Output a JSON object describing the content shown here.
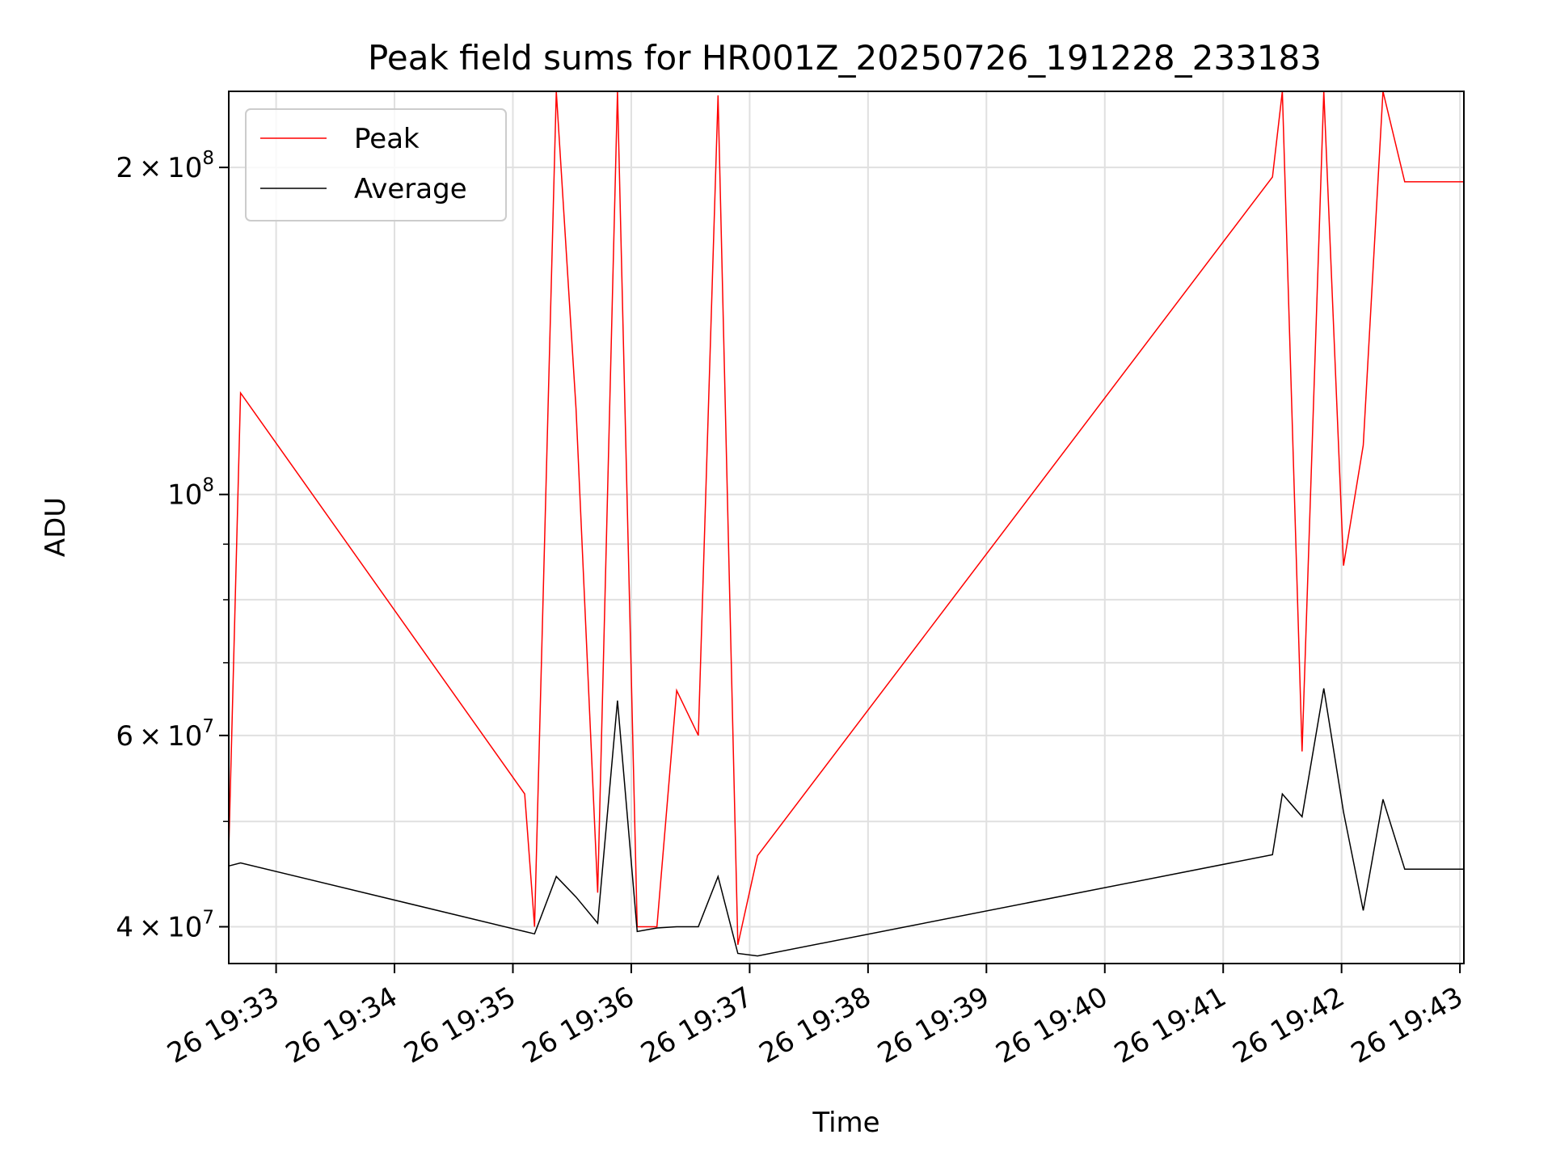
{
  "chart_data": {
    "type": "line",
    "title": "Peak field sums for HR001Z_20250726_191228_233183",
    "xlabel": "Time",
    "ylabel": "ADU",
    "yscale": "log",
    "ylim": [
      37000000,
      235000000
    ],
    "xlim": [
      "19:32:36",
      "19:43:02"
    ],
    "grid": true,
    "legend": {
      "position": "top-left",
      "entries": [
        "Peak",
        "Average"
      ]
    },
    "x_ticks": [
      "26 19:33",
      "26 19:34",
      "26 19:35",
      "26 19:36",
      "26 19:37",
      "26 19:38",
      "26 19:39",
      "26 19:40",
      "26 19:41",
      "26 19:42",
      "26 19:43"
    ],
    "y_ticks": [
      {
        "value": 40000000,
        "mantissa": "4",
        "op": "×",
        "base": "10",
        "exp": "7"
      },
      {
        "value": 60000000,
        "mantissa": "6",
        "op": "×",
        "base": "10",
        "exp": "7"
      },
      {
        "value": 100000000,
        "mantissa": "",
        "op": "",
        "base": "10",
        "exp": "8"
      },
      {
        "value": 200000000,
        "mantissa": "2",
        "op": "×",
        "base": "10",
        "exp": "8"
      }
    ],
    "minor_y": [
      50000000,
      70000000,
      80000000,
      90000000
    ],
    "colors": {
      "Peak": "#ff0000",
      "Average": "#000000"
    },
    "series": [
      {
        "name": "Peak",
        "x": [
          "19:32:36",
          "19:32:42",
          "19:35:06",
          "19:35:11",
          "19:35:22",
          "19:35:32",
          "19:35:43",
          "19:35:53",
          "19:36:03",
          "19:36:13",
          "19:36:23",
          "19:36:34",
          "19:36:44",
          "19:36:54",
          "19:37:04",
          "19:41:25",
          "19:41:30",
          "19:41:40",
          "19:41:51",
          "19:42:01",
          "19:42:11",
          "19:42:21",
          "19:42:32",
          "19:43:02"
        ],
        "values": [
          47000000,
          124000000,
          53000000,
          40000000,
          235000000,
          120000000,
          43000000,
          235000000,
          40000000,
          40000000,
          66000000,
          60000000,
          233000000,
          38500000,
          46500000,
          196000000,
          235000000,
          58000000,
          235000000,
          86000000,
          111000000,
          235000000,
          194000000,
          194000000
        ]
      },
      {
        "name": "Average",
        "x": [
          "19:32:36",
          "19:32:42",
          "19:35:06",
          "19:35:11",
          "19:35:22",
          "19:35:32",
          "19:35:43",
          "19:35:53",
          "19:36:03",
          "19:36:13",
          "19:36:23",
          "19:36:34",
          "19:36:44",
          "19:36:54",
          "19:37:04",
          "19:41:25",
          "19:41:30",
          "19:41:40",
          "19:41:51",
          "19:42:01",
          "19:42:11",
          "19:42:21",
          "19:42:32",
          "19:43:02"
        ],
        "values": [
          45500000,
          45800000,
          39600000,
          39400000,
          44500000,
          42600000,
          40300000,
          64600000,
          39600000,
          39900000,
          40000000,
          40000000,
          44500000,
          37800000,
          37600000,
          46600000,
          53000000,
          50500000,
          66300000,
          51000000,
          41400000,
          52400000,
          45200000,
          45200000
        ]
      }
    ]
  }
}
